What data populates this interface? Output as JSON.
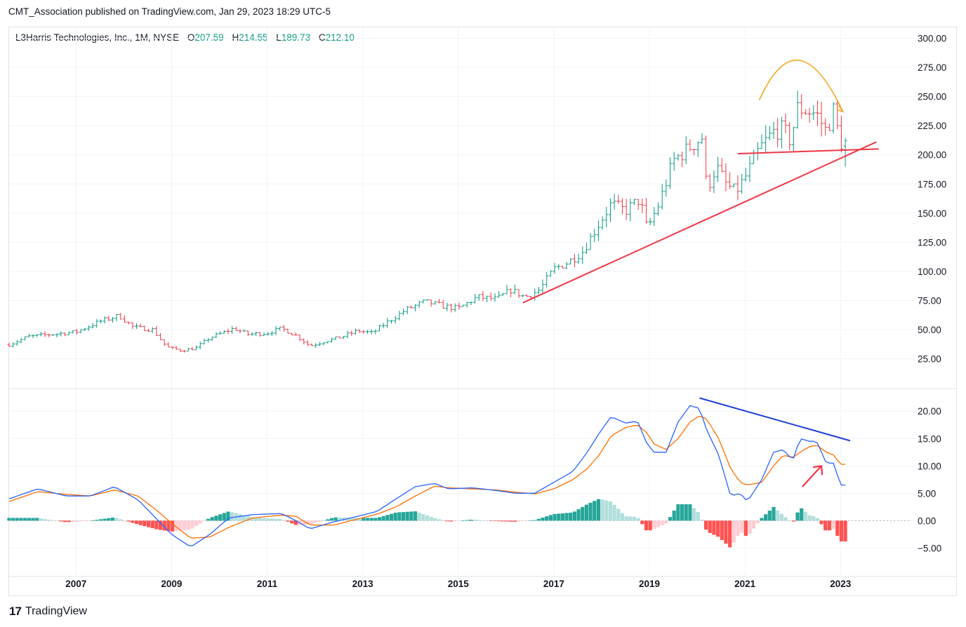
{
  "header": {
    "publisher": "CMT_Association published on TradingView.com, Jan 29, 2023 18:29 UTC-5"
  },
  "legend": {
    "symbol": "L3Harris Technologies, Inc., 1M, NYSE",
    "open_label": "O",
    "open": "207.59",
    "high_label": "H",
    "high": "214.55",
    "low_label": "L",
    "low": "189.73",
    "close_label": "C",
    "close": "212.10"
  },
  "footer": {
    "brand": "TradingView",
    "logo_icon": "tradingview-logo-icon"
  },
  "colors": {
    "up": "#089981",
    "down": "#f23645",
    "macd": "#2962ff",
    "signal": "#ff6d00",
    "trendline": "#f23645",
    "arrow_orange": "#f5a623",
    "divergence": "#1e3fd8"
  },
  "chart_data": [
    {
      "type": "ohlc",
      "panel": "price",
      "ylim": [
        0,
        310
      ],
      "y_ticks": [
        "300.00",
        "275.00",
        "250.00",
        "225.00",
        "200.00",
        "175.00",
        "150.00",
        "125.00",
        "100.00",
        "75.00",
        "50.00",
        "25.00"
      ],
      "y_tick_values": [
        300,
        275,
        250,
        225,
        200,
        175,
        150,
        125,
        100,
        75,
        50,
        25
      ],
      "x_ticks": [
        "2007",
        "2009",
        "2011",
        "2013",
        "2015",
        "2017",
        "2019",
        "2021",
        "2023"
      ],
      "x_tick_values": [
        2007,
        2009,
        2011,
        2013,
        2015,
        2017,
        2019,
        2021,
        2023
      ],
      "x_range": [
        2005.6,
        2024.45
      ],
      "close_anchors": [
        [
          2005.6,
          37
        ],
        [
          2006.0,
          44
        ],
        [
          2006.5,
          46
        ],
        [
          2007.0,
          48
        ],
        [
          2007.5,
          57
        ],
        [
          2007.9,
          62
        ],
        [
          2008.2,
          52
        ],
        [
          2008.6,
          50
        ],
        [
          2008.9,
          35
        ],
        [
          2009.2,
          32
        ],
        [
          2009.5,
          34
        ],
        [
          2009.8,
          43
        ],
        [
          2010.3,
          51
        ],
        [
          2010.6,
          46
        ],
        [
          2011.0,
          47
        ],
        [
          2011.3,
          51
        ],
        [
          2011.6,
          45
        ],
        [
          2011.9,
          36
        ],
        [
          2012.2,
          40
        ],
        [
          2012.5,
          43
        ],
        [
          2012.9,
          49
        ],
        [
          2013.2,
          47
        ],
        [
          2013.5,
          56
        ],
        [
          2013.9,
          67
        ],
        [
          2014.3,
          74
        ],
        [
          2014.7,
          70
        ],
        [
          2015.0,
          68
        ],
        [
          2015.4,
          78
        ],
        [
          2015.8,
          76
        ],
        [
          2016.1,
          84
        ],
        [
          2016.4,
          78
        ],
        [
          2016.7,
          84
        ],
        [
          2017.0,
          102
        ],
        [
          2017.3,
          108
        ],
        [
          2017.6,
          117
        ],
        [
          2017.9,
          138
        ],
        [
          2018.2,
          158
        ],
        [
          2018.5,
          152
        ],
        [
          2018.8,
          162
        ],
        [
          2018.95,
          136
        ],
        [
          2019.2,
          158
        ],
        [
          2019.5,
          195
        ],
        [
          2019.8,
          205
        ],
        [
          2020.1,
          215
        ],
        [
          2020.2,
          170
        ],
        [
          2020.4,
          190
        ],
        [
          2020.6,
          175
        ],
        [
          2020.8,
          168
        ],
        [
          2021.0,
          180
        ],
        [
          2021.3,
          205
        ],
        [
          2021.6,
          220
        ],
        [
          2021.8,
          222
        ],
        [
          2021.95,
          212
        ],
        [
          2022.1,
          240
        ],
        [
          2022.3,
          238
        ],
        [
          2022.5,
          235
        ],
        [
          2022.7,
          220
        ],
        [
          2022.85,
          238
        ],
        [
          2023.0,
          210
        ],
        [
          2023.08,
          212.1
        ]
      ],
      "ohlc_samples": [
        {
          "date": "2023-01",
          "open": 207.59,
          "high": 214.55,
          "low": 189.73,
          "close": 212.1
        }
      ],
      "annotations": [
        {
          "type": "trendline",
          "name": "rising-support",
          "points": [
            [
              2016.35,
              73
            ],
            [
              2023.75,
              211
            ]
          ]
        },
        {
          "type": "horizontal-line",
          "name": "neckline",
          "points": [
            [
              2020.85,
              201
            ],
            [
              2023.8,
              205
            ]
          ]
        },
        {
          "type": "curved-arrow",
          "name": "rounding-top-arrow",
          "points": [
            [
              2021.3,
              247
            ],
            [
              2022.1,
              290
            ],
            [
              2023.05,
              237
            ]
          ]
        }
      ]
    },
    {
      "type": "macd",
      "panel": "indicator",
      "ylim": [
        -10.2,
        24
      ],
      "y_ticks": [
        "20.00",
        "15.00",
        "10.00",
        "5.00",
        "0.00",
        "−5.00"
      ],
      "y_tick_values": [
        20,
        15,
        10,
        5,
        0,
        -5
      ],
      "macd_anchors": [
        [
          2005.6,
          4
        ],
        [
          2006.2,
          5.8
        ],
        [
          2006.8,
          4.5
        ],
        [
          2007.3,
          4.5
        ],
        [
          2007.8,
          6.2
        ],
        [
          2008.3,
          3.8
        ],
        [
          2008.7,
          0.2
        ],
        [
          2009.0,
          -2.5
        ],
        [
          2009.4,
          -4.8
        ],
        [
          2009.8,
          -2.5
        ],
        [
          2010.2,
          0.5
        ],
        [
          2010.7,
          1.1
        ],
        [
          2011.3,
          1.3
        ],
        [
          2011.6,
          0
        ],
        [
          2011.9,
          -1.5
        ],
        [
          2012.4,
          -0.2
        ],
        [
          2012.9,
          0.8
        ],
        [
          2013.3,
          1.7
        ],
        [
          2013.7,
          4
        ],
        [
          2014.1,
          6.2
        ],
        [
          2014.5,
          6.8
        ],
        [
          2014.8,
          5.8
        ],
        [
          2015.3,
          6
        ],
        [
          2015.8,
          5.5
        ],
        [
          2016.2,
          5
        ],
        [
          2016.6,
          5
        ],
        [
          2017.0,
          7
        ],
        [
          2017.4,
          9
        ],
        [
          2017.7,
          12.5
        ],
        [
          2017.95,
          16
        ],
        [
          2018.2,
          19
        ],
        [
          2018.5,
          17.8
        ],
        [
          2018.75,
          18.2
        ],
        [
          2018.95,
          14
        ],
        [
          2019.1,
          12.5
        ],
        [
          2019.35,
          12.5
        ],
        [
          2019.6,
          18
        ],
        [
          2019.85,
          21
        ],
        [
          2020.05,
          20.5
        ],
        [
          2020.2,
          16.5
        ],
        [
          2020.45,
          12
        ],
        [
          2020.7,
          4.5
        ],
        [
          2020.9,
          5
        ],
        [
          2021.05,
          3.5
        ],
        [
          2021.35,
          7.5
        ],
        [
          2021.6,
          12.5
        ],
        [
          2021.8,
          13
        ],
        [
          2022.0,
          11
        ],
        [
          2022.15,
          15
        ],
        [
          2022.35,
          14.5
        ],
        [
          2022.5,
          14.5
        ],
        [
          2022.7,
          10.5
        ],
        [
          2022.85,
          10.5
        ],
        [
          2023.0,
          6.5
        ]
      ],
      "signal_anchors": [
        [
          2005.6,
          3.5
        ],
        [
          2006.2,
          5.3
        ],
        [
          2006.8,
          4.8
        ],
        [
          2007.3,
          4.5
        ],
        [
          2007.8,
          5.6
        ],
        [
          2008.3,
          4.5
        ],
        [
          2008.7,
          1.8
        ],
        [
          2009.0,
          -0.5
        ],
        [
          2009.4,
          -3.2
        ],
        [
          2009.8,
          -3
        ],
        [
          2010.2,
          -1.2
        ],
        [
          2010.7,
          0.5
        ],
        [
          2011.3,
          1
        ],
        [
          2011.6,
          0.8
        ],
        [
          2011.9,
          -0.8
        ],
        [
          2012.4,
          -0.8
        ],
        [
          2012.9,
          0.3
        ],
        [
          2013.3,
          1.2
        ],
        [
          2013.7,
          2.5
        ],
        [
          2014.1,
          4.5
        ],
        [
          2014.5,
          6.3
        ],
        [
          2014.8,
          6
        ],
        [
          2015.3,
          5.8
        ],
        [
          2015.8,
          5.6
        ],
        [
          2016.2,
          5.2
        ],
        [
          2016.6,
          4.9
        ],
        [
          2017.0,
          5.8
        ],
        [
          2017.4,
          7.5
        ],
        [
          2017.7,
          9.5
        ],
        [
          2017.95,
          12
        ],
        [
          2018.2,
          15.5
        ],
        [
          2018.5,
          17
        ],
        [
          2018.75,
          17.5
        ],
        [
          2018.95,
          16
        ],
        [
          2019.1,
          14
        ],
        [
          2019.35,
          13
        ],
        [
          2019.6,
          15
        ],
        [
          2019.85,
          18
        ],
        [
          2020.05,
          19.2
        ],
        [
          2020.2,
          18.5
        ],
        [
          2020.45,
          15
        ],
        [
          2020.7,
          9.5
        ],
        [
          2020.9,
          7
        ],
        [
          2021.05,
          6.5
        ],
        [
          2021.35,
          7
        ],
        [
          2021.6,
          10
        ],
        [
          2021.8,
          12
        ],
        [
          2022.0,
          11.5
        ],
        [
          2022.15,
          12.5
        ],
        [
          2022.35,
          13.5
        ],
        [
          2022.5,
          13.8
        ],
        [
          2022.7,
          12.5
        ],
        [
          2022.85,
          12
        ],
        [
          2023.0,
          10.3
        ]
      ],
      "annotations": [
        {
          "type": "trendline",
          "name": "bearish-divergence-line",
          "points": [
            [
              2020.05,
              22.4
            ],
            [
              2023.2,
              14.6
            ]
          ]
        },
        {
          "type": "arrow",
          "name": "signal-cross-arrow",
          "points": [
            [
              2022.2,
              6.2
            ],
            [
              2022.6,
              10
            ]
          ]
        }
      ]
    }
  ]
}
